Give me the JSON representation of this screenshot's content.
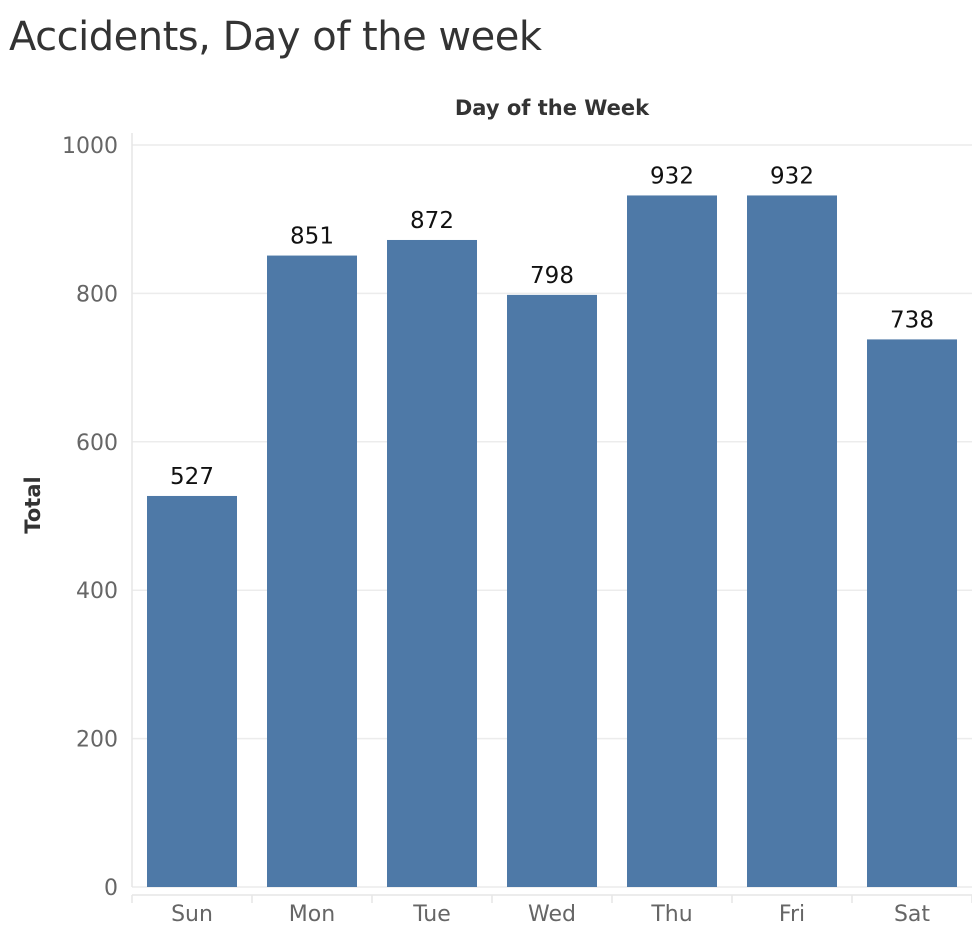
{
  "title": "Accidents, Day of the week",
  "chart_data": {
    "type": "bar",
    "title": "Accidents, Day of the week",
    "xlabel": "Day of the Week",
    "ylabel": "Total",
    "x_axis_position": "top",
    "categories": [
      "Sun",
      "Mon",
      "Tue",
      "Wed",
      "Thu",
      "Fri",
      "Sat"
    ],
    "values": [
      527,
      851,
      872,
      798,
      932,
      932,
      738
    ],
    "data_labels": [
      "527",
      "851",
      "872",
      "798",
      "932",
      "932",
      "738"
    ],
    "ylim": [
      0,
      1000
    ],
    "yticks": [
      0,
      200,
      400,
      600,
      800,
      1000
    ],
    "ytick_labels": [
      "0",
      "200",
      "400",
      "600",
      "800",
      "1000"
    ],
    "grid": true,
    "legend": "none",
    "bar_color": "#4e79a7"
  }
}
